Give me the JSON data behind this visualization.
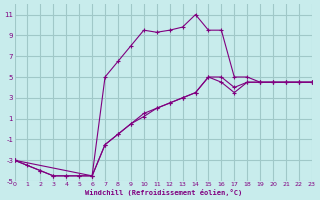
{
  "xlabel": "Windchill (Refroidissement éolien,°C)",
  "bg_color": "#c8ecec",
  "grid_color": "#a0c8c8",
  "line_color": "#800080",
  "xlim": [
    0,
    23
  ],
  "ylim": [
    -5,
    12
  ],
  "yticks": [
    -5,
    -3,
    -1,
    1,
    3,
    5,
    7,
    9,
    11
  ],
  "xticks": [
    0,
    1,
    2,
    3,
    4,
    5,
    6,
    7,
    8,
    9,
    10,
    11,
    12,
    13,
    14,
    15,
    16,
    17,
    18,
    19,
    20,
    21,
    22,
    23
  ],
  "series1_x": [
    0,
    1,
    2,
    3,
    4,
    5,
    6,
    7,
    8,
    9,
    10,
    11,
    12,
    13,
    14,
    15,
    16,
    17,
    18,
    19,
    20,
    21,
    22,
    23
  ],
  "series1_y": [
    -3,
    -3.5,
    -4,
    -4.5,
    -4.5,
    -4.5,
    -4.5,
    5,
    6.5,
    8,
    9.5,
    9.3,
    9.5,
    9.8,
    11,
    9.5,
    9.5,
    5,
    5,
    4.5,
    4.5,
    4.5,
    4.5,
    4.5
  ],
  "series2_x": [
    0,
    6,
    7,
    8,
    9,
    10,
    11,
    12,
    13,
    14,
    15,
    16,
    17,
    18,
    19,
    20,
    21,
    22,
    23
  ],
  "series2_y": [
    -3,
    -4.5,
    -1.5,
    -0.5,
    0.5,
    1.5,
    2,
    2.5,
    3,
    3.5,
    5,
    4.5,
    3.5,
    4.5,
    4.5,
    4.5,
    4.5,
    4.5,
    4.5
  ],
  "series3_x": [
    0,
    2,
    3,
    4,
    5,
    6,
    7,
    8,
    9,
    10,
    11,
    12,
    13,
    14,
    15,
    16,
    17,
    18,
    19,
    20,
    21,
    22,
    23
  ],
  "series3_y": [
    -3,
    -4,
    -4.5,
    -4.5,
    -4.5,
    -4.5,
    -1.5,
    -0.5,
    0.5,
    1.2,
    2,
    2.5,
    3,
    3.5,
    5,
    5,
    4,
    4.5,
    4.5,
    4.5,
    4.5,
    4.5,
    4.5
  ]
}
